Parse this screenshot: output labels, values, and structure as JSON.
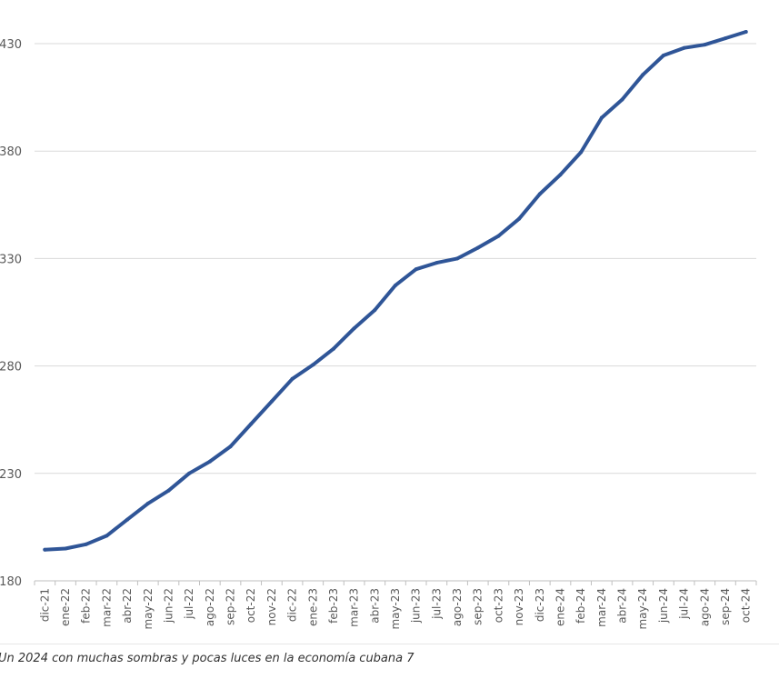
{
  "chart_data": {
    "type": "line",
    "title": "",
    "xlabel": "",
    "ylabel": "",
    "ylim": [
      180,
      430
    ],
    "yticks": [
      "180",
      "230",
      "280",
      "330",
      "380",
      "430"
    ],
    "grid": true,
    "legend": "none",
    "categories": [
      "dic-21",
      "ene-22",
      "feb-22",
      "mar-22",
      "abr-22",
      "may-22",
      "jun-22",
      "jul-22",
      "ago-22",
      "sep-22",
      "oct-22",
      "nov-22",
      "dic-22",
      "ene-23",
      "feb-23",
      "mar-23",
      "abr-23",
      "may-23",
      "jun-23",
      "jul-23",
      "ago-23",
      "sep-23",
      "oct-23",
      "nov-23",
      "dic-23",
      "ene-24",
      "feb-24",
      "mar-24",
      "abr-24",
      "may-24",
      "jun-24",
      "jul-24",
      "ago-24",
      "sep-24",
      "oct-24"
    ],
    "series": [
      {
        "values": [
          194.5,
          195,
          197,
          201,
          208.5,
          216,
          222,
          230,
          235.5,
          242.5,
          253,
          263.5,
          274,
          280.5,
          288,
          297.5,
          306,
          317.5,
          325,
          328,
          330,
          335,
          340.5,
          348.5,
          360,
          369,
          379.5,
          395.5,
          404,
          415.5,
          424.5,
          428,
          429.5,
          432.5,
          435.5
        ]
      }
    ],
    "colors": {
      "line": "#2f5597",
      "grid": "#d9d9d9",
      "tick_text": "#595959"
    }
  },
  "caption": "Un 2024 con muchas sombras y pocas luces en la economía cubana 7"
}
